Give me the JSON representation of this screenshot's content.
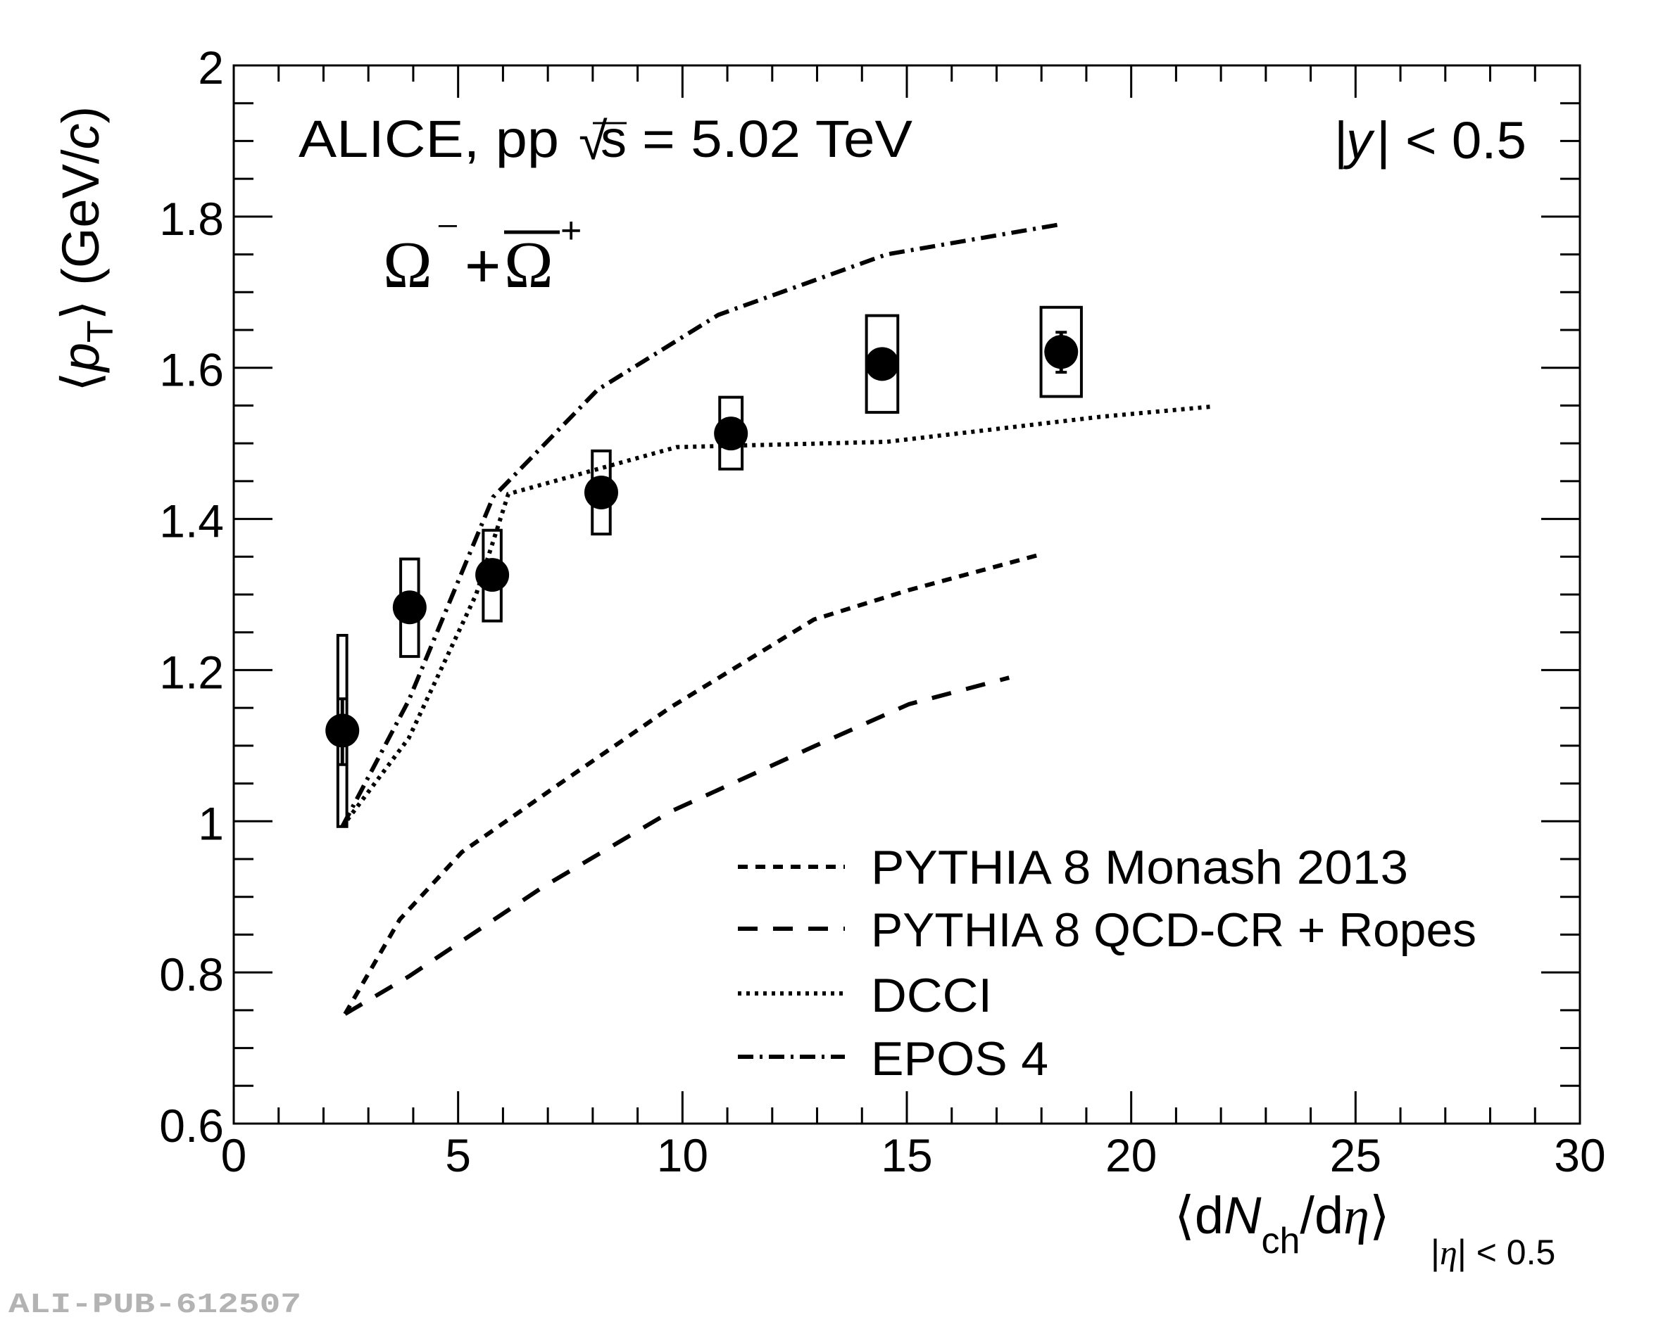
{
  "chart_data": {
    "type": "scatter",
    "title": "",
    "xlabel": {
      "main_prefix": "⟨d",
      "main_N": "N",
      "main_sub": "ch",
      "main_mid": "/d",
      "main_eta": "η",
      "main_close": "⟩",
      "range_sub_bar1": "|",
      "range_sub_eta": "η",
      "range_sub_rest": "| < 0.5"
    },
    "ylabel": {
      "open": "⟨",
      "p": "p",
      "sub": "T",
      "close": "⟩",
      "unit_prefix": " (GeV/",
      "unit_c": "c",
      "unit_suffix": ")"
    },
    "xlim": [
      0,
      30
    ],
    "ylim": [
      0.6,
      2.0
    ],
    "x_major_step": 5,
    "x_minor_step": 1,
    "y_major_step": 0.2,
    "y_minor_step": 0.05,
    "x_tick_labels": [
      "0",
      "5",
      "10",
      "15",
      "20",
      "25",
      "30"
    ],
    "y_tick_labels": [
      "0.6",
      "0.8",
      "1",
      "1.2",
      "1.4",
      "1.6",
      "1.8",
      "2"
    ],
    "grid": false,
    "annotations": {
      "experiment": "ALICE, pp",
      "sqrt_s_prefix": "√",
      "sqrt_s_var": "s",
      "energy": "= 5.02 TeV",
      "rapidity_bar1": "|",
      "rapidity_var": "y",
      "rapidity_rest": "| < 0.5",
      "particle_omega1": "Ω",
      "particle_minus": "−",
      "particle_plus_sign": "+",
      "particle_omega2": "Ω",
      "particle_plus_charge": "+"
    },
    "data_series": {
      "name": "Ω⁻ + Ω̄⁺ data",
      "marker": "filled-circle",
      "color": "#000000",
      "points": [
        {
          "x": 2.42,
          "y": 1.12,
          "stat_lo": 1.075,
          "stat_hi": 1.162,
          "syst_lo": 0.993,
          "syst_hi": 1.246
        },
        {
          "x": 3.92,
          "y": 1.283,
          "stat_lo": 1.283,
          "stat_hi": 1.283,
          "syst_lo": 1.218,
          "syst_hi": 1.347
        },
        {
          "x": 5.76,
          "y": 1.326,
          "stat_lo": 1.326,
          "stat_hi": 1.326,
          "syst_lo": 1.265,
          "syst_hi": 1.385
        },
        {
          "x": 8.19,
          "y": 1.435,
          "stat_lo": 1.435,
          "stat_hi": 1.435,
          "syst_lo": 1.38,
          "syst_hi": 1.49
        },
        {
          "x": 11.08,
          "y": 1.513,
          "stat_lo": 1.513,
          "stat_hi": 1.513,
          "syst_lo": 1.466,
          "syst_hi": 1.561
        },
        {
          "x": 14.45,
          "y": 1.605,
          "stat_lo": 1.605,
          "stat_hi": 1.605,
          "syst_lo": 1.541,
          "syst_hi": 1.669
        },
        {
          "x": 18.44,
          "y": 1.621,
          "stat_lo": 1.594,
          "stat_hi": 1.647,
          "syst_lo": 1.562,
          "syst_hi": 1.68
        }
      ],
      "syst_box_halfwidth_x": [
        0.1,
        0.2,
        0.2,
        0.2,
        0.25,
        0.35,
        0.45
      ]
    },
    "series": [
      {
        "name": "PYTHIA 8 Monash 2013",
        "style": "dotted-dashed-short",
        "dash": "14,11",
        "x": [
          2.48,
          3.7,
          5.08,
          7.2,
          9.74,
          12.93,
          15.05,
          17.92
        ],
        "y": [
          0.745,
          0.87,
          0.959,
          1.047,
          1.151,
          1.267,
          1.306,
          1.352
        ]
      },
      {
        "name": "PYTHIA 8 QCD-CR + Ropes",
        "style": "dashed",
        "dash": "28,22",
        "x": [
          2.48,
          3.91,
          6.89,
          9.74,
          12.93,
          15.05,
          17.28
        ],
        "y": [
          0.745,
          0.795,
          0.913,
          1.013,
          1.099,
          1.155,
          1.19
        ]
      },
      {
        "name": "DCCI",
        "style": "dotted",
        "dash": "5,7",
        "x": [
          2.42,
          3.9,
          5.4,
          6.12,
          9.87,
          14.55,
          19.3,
          21.86
        ],
        "y": [
          0.993,
          1.11,
          1.3,
          1.433,
          1.495,
          1.502,
          1.535,
          1.549
        ]
      },
      {
        "name": "EPOS 4",
        "style": "dash-dot",
        "dash": "22,9,4,9",
        "x": [
          2.42,
          3.9,
          5.78,
          8.11,
          10.8,
          14.55,
          18.45
        ],
        "y": [
          0.993,
          1.16,
          1.429,
          1.571,
          1.67,
          1.75,
          1.79
        ]
      }
    ],
    "legend": {
      "placement": "bottom-right",
      "entries": [
        "PYTHIA 8 Monash 2013",
        "PYTHIA 8 QCD-CR + Ropes",
        "DCCI",
        "EPOS 4"
      ]
    }
  },
  "watermark": "ALI-PUB-612507",
  "colors": {
    "ink": "#000000",
    "watermark": "#b3b3b3",
    "background": "#ffffff"
  }
}
